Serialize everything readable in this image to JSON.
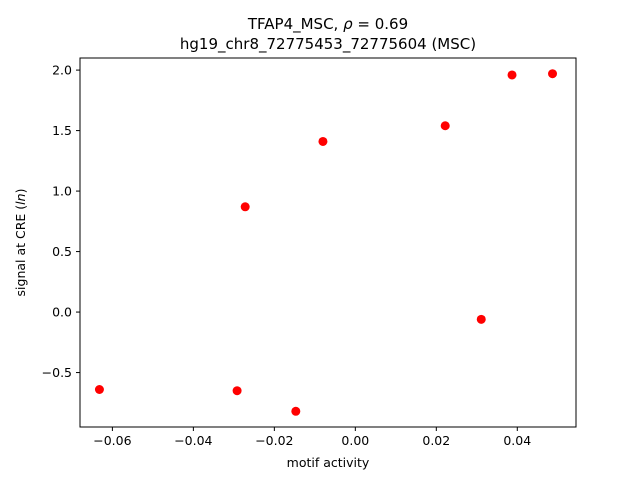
{
  "chart_data": {
    "type": "scatter",
    "title_line1": "TFAP4_MSC, ρ = 0.69",
    "title_line2": "hg19_chr8_72775453_72775604 (MSC)",
    "xlabel": "motif activity",
    "ylabel": "signal at CRE (ln)",
    "xlim": [
      -0.068,
      0.0545
    ],
    "ylim": [
      -0.95,
      2.1
    ],
    "xticks": [
      -0.06,
      -0.04,
      -0.02,
      0.0,
      0.02,
      0.04
    ],
    "xtick_labels": [
      "−0.06",
      "−0.04",
      "−0.02",
      "0.00",
      "0.02",
      "0.04"
    ],
    "yticks": [
      -0.5,
      0.0,
      0.5,
      1.0,
      1.5,
      2.0
    ],
    "ytick_labels": [
      "−0.5",
      "0.0",
      "0.5",
      "1.0",
      "1.5",
      "2.0"
    ],
    "grid": false,
    "marker_color": "#ff0000",
    "points": [
      {
        "x": -0.0632,
        "y": -0.64
      },
      {
        "x": -0.0292,
        "y": -0.65
      },
      {
        "x": -0.0272,
        "y": 0.87
      },
      {
        "x": -0.0147,
        "y": -0.82
      },
      {
        "x": -0.008,
        "y": 1.41
      },
      {
        "x": 0.0222,
        "y": 1.54
      },
      {
        "x": 0.0311,
        "y": -0.06
      },
      {
        "x": 0.0387,
        "y": 1.96
      },
      {
        "x": 0.0487,
        "y": 1.97
      }
    ]
  }
}
